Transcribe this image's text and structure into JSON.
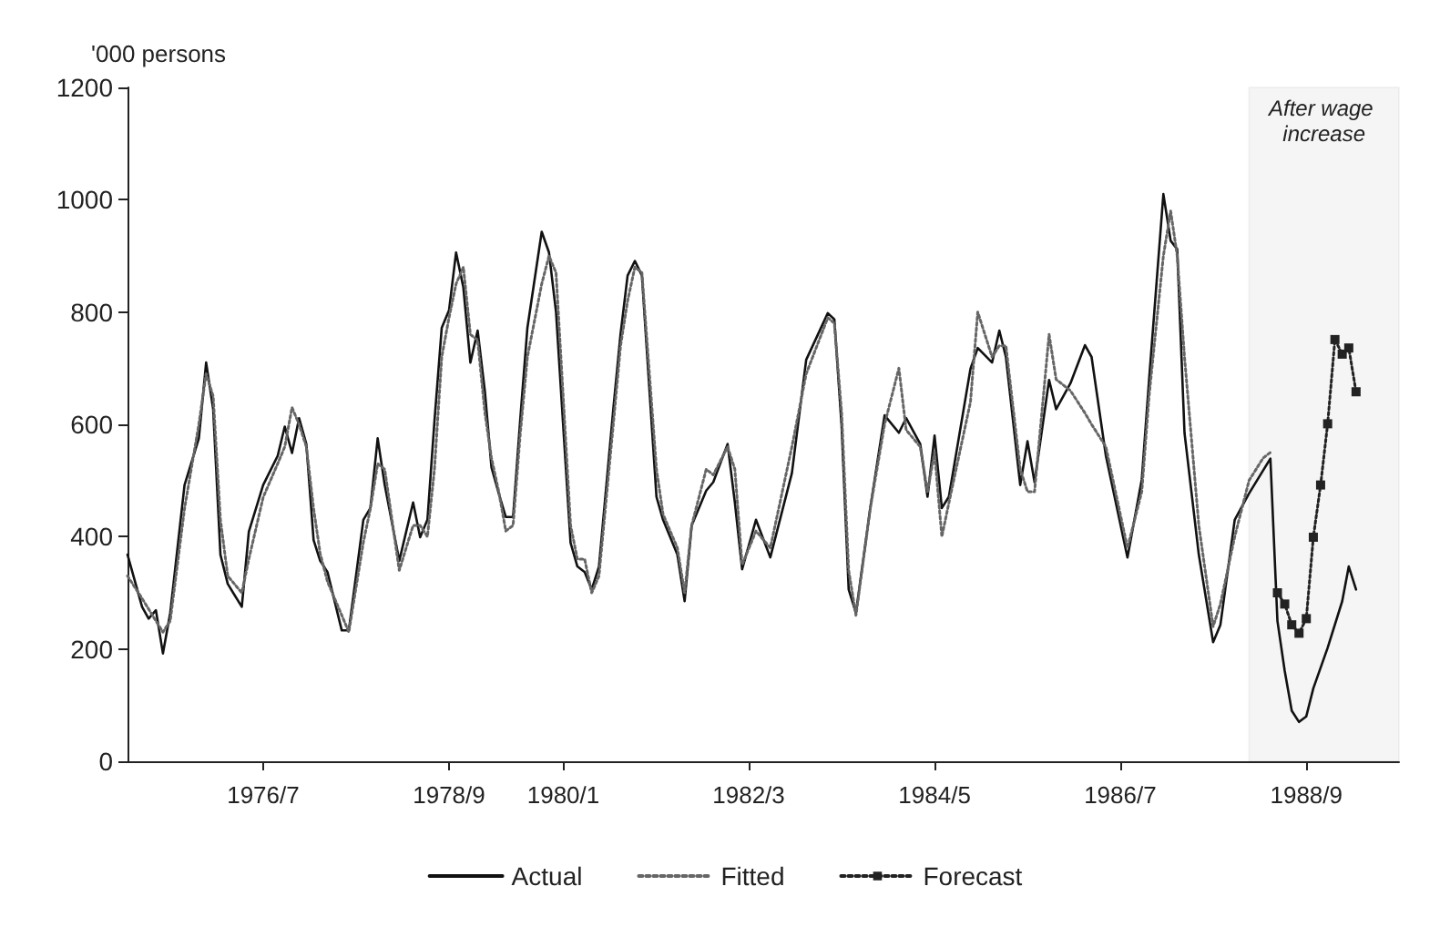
{
  "chart_data": {
    "type": "line",
    "ylabel": "'000 persons",
    "xlim": [
      "1974-12",
      "1989-10"
    ],
    "ylim": [
      0,
      1200
    ],
    "yticks": [
      0,
      200,
      400,
      600,
      800,
      1000,
      1200
    ],
    "xticks": [
      {
        "value": "1976-07",
        "label": "1976/7"
      },
      {
        "value": "1978-09",
        "label": "1978/9"
      },
      {
        "value": "1980-01",
        "label": "1980/1"
      },
      {
        "value": "1982-03",
        "label": "1982/3"
      },
      {
        "value": "1984-05",
        "label": "1984/5"
      },
      {
        "value": "1986-07",
        "label": "1986/7"
      },
      {
        "value": "1988-09",
        "label": "1988/9"
      }
    ],
    "grid": false,
    "legend": "bottom",
    "bands": [
      {
        "axis": "x",
        "from": "1988-01",
        "to": "1989-10",
        "label": "After wage increase",
        "color": "#000000"
      }
    ],
    "series": [
      {
        "name": "Actual",
        "color": "#111111",
        "line_style": "solid",
        "marker": "none",
        "x": [
          "1974-12",
          "1975-02",
          "1975-03",
          "1975-04",
          "1975-05",
          "1975-06",
          "1975-08",
          "1975-10",
          "1975-11",
          "1975-12",
          "1976-01",
          "1976-02",
          "1976-04",
          "1976-05",
          "1976-07",
          "1976-09",
          "1976-10",
          "1976-11",
          "1976-12",
          "1977-01",
          "1977-02",
          "1977-03",
          "1977-04",
          "1977-06",
          "1977-07",
          "1977-09",
          "1977-10",
          "1977-11",
          "1977-12",
          "1978-02",
          "1978-04",
          "1978-05",
          "1978-06",
          "1978-07",
          "1978-08",
          "1978-09",
          "1978-10",
          "1978-11",
          "1978-12",
          "1979-01",
          "1979-02",
          "1979-03",
          "1979-04",
          "1979-05",
          "1979-06",
          "1979-07",
          "1979-08",
          "1979-10",
          "1979-11",
          "1979-12",
          "1980-02",
          "1980-03",
          "1980-04",
          "1980-05",
          "1980-06",
          "1980-08",
          "1980-09",
          "1980-10",
          "1980-11",
          "1980-12",
          "1981-02",
          "1981-03",
          "1981-05",
          "1981-06",
          "1981-07",
          "1981-09",
          "1981-10",
          "1981-12",
          "1982-01",
          "1982-02",
          "1982-04",
          "1982-06",
          "1982-09",
          "1982-11",
          "1983-02",
          "1983-03",
          "1983-04",
          "1983-05",
          "1983-06",
          "1983-08",
          "1983-10",
          "1983-12",
          "1984-01",
          "1984-03",
          "1984-04",
          "1984-05",
          "1984-06",
          "1984-07",
          "1984-10",
          "1984-11",
          "1985-01",
          "1985-02",
          "1985-03",
          "1985-05",
          "1985-06",
          "1985-07",
          "1985-09",
          "1985-10",
          "1985-12",
          "1986-02",
          "1986-03",
          "1986-05",
          "1986-08",
          "1986-10",
          "1986-11",
          "1987-01",
          "1987-02",
          "1987-03",
          "1987-04",
          "1987-06",
          "1987-08",
          "1987-09",
          "1987-11",
          "1988-01",
          "1988-03",
          "1988-04",
          "1988-05",
          "1988-06",
          "1988-07",
          "1988-08",
          "1988-09",
          "1988-10",
          "1988-12",
          "1989-02",
          "1989-03",
          "1989-04"
        ],
        "values": [
          368,
          275,
          254,
          269,
          192,
          264,
          492,
          575,
          710,
          627,
          368,
          316,
          275,
          409,
          492,
          544,
          596,
          549,
          611,
          565,
          394,
          357,
          337,
          233,
          233,
          430,
          451,
          575,
          492,
          357,
          461,
          399,
          430,
          606,
          772,
          803,
          906,
          844,
          710,
          767,
          658,
          523,
          477,
          435,
          435,
          606,
          772,
          943,
          906,
          800,
          389,
          347,
          337,
          306,
          347,
          627,
          761,
          865,
          891,
          865,
          471,
          430,
          368,
          285,
          420,
          482,
          497,
          565,
          461,
          342,
          430,
          363,
          513,
          715,
          798,
          787,
          596,
          306,
          264,
          451,
          616,
          585,
          611,
          565,
          471,
          580,
          451,
          471,
          699,
          736,
          710,
          767,
          720,
          492,
          570,
          497,
          679,
          627,
          673,
          741,
          720,
          544,
          363,
          502,
          679,
          1010,
          927,
          912,
          585,
          368,
          212,
          243,
          430,
          477,
          518,
          539,
          250,
          161,
          90,
          70,
          80,
          130,
          202,
          285,
          347,
          306
        ]
      },
      {
        "name": "Fitted",
        "color": "#666666",
        "line_style": "dotted",
        "marker": "none",
        "x": [
          "1974-12",
          "1975-02",
          "1975-04",
          "1975-05",
          "1975-06",
          "1975-08",
          "1975-10",
          "1975-11",
          "1975-12",
          "1976-01",
          "1976-02",
          "1976-04",
          "1976-05",
          "1976-07",
          "1976-09",
          "1976-10",
          "1976-11",
          "1976-12",
          "1977-01",
          "1977-02",
          "1977-03",
          "1977-04",
          "1977-06",
          "1977-07",
          "1977-09",
          "1977-10",
          "1977-11",
          "1977-12",
          "1978-02",
          "1978-04",
          "1978-05",
          "1978-06",
          "1978-07",
          "1978-08",
          "1978-09",
          "1978-10",
          "1978-11",
          "1978-12",
          "1979-01",
          "1979-02",
          "1979-03",
          "1979-04",
          "1979-05",
          "1979-06",
          "1979-07",
          "1979-08",
          "1979-10",
          "1979-11",
          "1979-12",
          "1980-02",
          "1980-03",
          "1980-04",
          "1980-05",
          "1980-06",
          "1980-08",
          "1980-09",
          "1980-10",
          "1980-11",
          "1980-12",
          "1981-02",
          "1981-03",
          "1981-05",
          "1981-06",
          "1981-07",
          "1981-09",
          "1981-10",
          "1981-12",
          "1982-01",
          "1982-02",
          "1982-04",
          "1982-06",
          "1982-09",
          "1982-11",
          "1983-02",
          "1983-03",
          "1983-04",
          "1983-05",
          "1983-06",
          "1983-08",
          "1983-10",
          "1983-12",
          "1984-01",
          "1984-03",
          "1984-04",
          "1984-05",
          "1984-06",
          "1984-07",
          "1984-10",
          "1984-11",
          "1985-01",
          "1985-02",
          "1985-03",
          "1985-05",
          "1985-06",
          "1985-07",
          "1985-09",
          "1985-10",
          "1985-12",
          "1986-02",
          "1986-03",
          "1986-05",
          "1986-08",
          "1986-10",
          "1986-11",
          "1987-01",
          "1987-02",
          "1987-03",
          "1987-04",
          "1987-06",
          "1987-08",
          "1987-09",
          "1987-11",
          "1988-01",
          "1988-03",
          "1988-04"
        ],
        "values": [
          330,
          290,
          250,
          230,
          250,
          450,
          600,
          690,
          650,
          430,
          330,
          300,
          360,
          470,
          530,
          560,
          630,
          600,
          560,
          450,
          370,
          320,
          260,
          230,
          390,
          450,
          530,
          520,
          340,
          420,
          420,
          400,
          520,
          720,
          790,
          850,
          880,
          760,
          750,
          620,
          540,
          480,
          410,
          420,
          580,
          720,
          850,
          900,
          870,
          420,
          360,
          360,
          300,
          330,
          600,
          740,
          820,
          880,
          870,
          520,
          440,
          380,
          300,
          420,
          520,
          510,
          560,
          520,
          350,
          410,
          380,
          560,
          690,
          790,
          780,
          620,
          340,
          260,
          450,
          600,
          700,
          590,
          560,
          480,
          550,
          400,
          460,
          640,
          800,
          720,
          740,
          740,
          520,
          480,
          480,
          760,
          680,
          660,
          620,
          600,
          560,
          380,
          480,
          650,
          900,
          980,
          900,
          720,
          420,
          240,
          280,
          400,
          500,
          540,
          550
        ]
      },
      {
        "name": "Forecast",
        "color": "#222222",
        "line_style": "dotted",
        "marker": "square",
        "x": [
          "1988-05",
          "1988-06",
          "1988-07",
          "1988-08",
          "1988-09",
          "1988-10",
          "1988-11",
          "1988-12",
          "1989-01",
          "1989-02",
          "1989-03",
          "1989-04"
        ],
        "values": [
          300,
          280,
          243,
          228,
          254,
          399,
          492,
          601,
          751,
          725,
          736,
          658
        ]
      }
    ]
  }
}
